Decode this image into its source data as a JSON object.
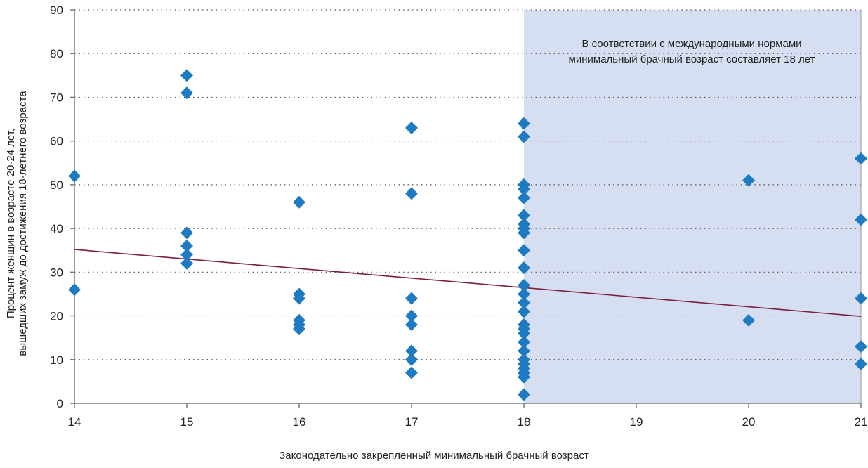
{
  "chart_data": {
    "type": "scatter",
    "xlabel": "Законодательно закрепленный минимальный брачный возраст",
    "ylabel_lines": [
      "Процент женщин в возрасте 20-24 лет,",
      "вышедших замуж до достижения 18-летнего возраста"
    ],
    "annotation_lines": [
      "В соответствии с международными нормами",
      "минимальный брачный возраст составляет 18 лет"
    ],
    "x_ticks": [
      14,
      15,
      16,
      17,
      18,
      19,
      20,
      21
    ],
    "y_ticks": [
      0,
      10,
      20,
      30,
      40,
      50,
      60,
      70,
      80,
      90
    ],
    "xlim": [
      14,
      21
    ],
    "ylim": [
      0,
      90
    ],
    "grid": "horizontal dotted",
    "shaded_region": {
      "x_from": 18,
      "x_to": 21,
      "color": "#d6dff1"
    },
    "marker": {
      "shape": "diamond",
      "color": "#1f7bc1"
    },
    "trendline": {
      "x": [
        14,
        21
      ],
      "y": [
        35.2,
        19.9
      ],
      "color": "#7a1f3d"
    },
    "points": [
      {
        "x": 14,
        "y": 52
      },
      {
        "x": 14,
        "y": 26
      },
      {
        "x": 15,
        "y": 75
      },
      {
        "x": 15,
        "y": 71
      },
      {
        "x": 15,
        "y": 39
      },
      {
        "x": 15,
        "y": 36
      },
      {
        "x": 15,
        "y": 34
      },
      {
        "x": 15,
        "y": 32
      },
      {
        "x": 16,
        "y": 46
      },
      {
        "x": 16,
        "y": 25
      },
      {
        "x": 16,
        "y": 24
      },
      {
        "x": 16,
        "y": 19
      },
      {
        "x": 16,
        "y": 18
      },
      {
        "x": 16,
        "y": 17
      },
      {
        "x": 17,
        "y": 63
      },
      {
        "x": 17,
        "y": 48
      },
      {
        "x": 17,
        "y": 24
      },
      {
        "x": 17,
        "y": 20
      },
      {
        "x": 17,
        "y": 18
      },
      {
        "x": 17,
        "y": 12
      },
      {
        "x": 17,
        "y": 10
      },
      {
        "x": 17,
        "y": 7
      },
      {
        "x": 18,
        "y": 64
      },
      {
        "x": 18,
        "y": 61
      },
      {
        "x": 18,
        "y": 50
      },
      {
        "x": 18,
        "y": 49
      },
      {
        "x": 18,
        "y": 47
      },
      {
        "x": 18,
        "y": 43
      },
      {
        "x": 18,
        "y": 41
      },
      {
        "x": 18,
        "y": 40
      },
      {
        "x": 18,
        "y": 39
      },
      {
        "x": 18,
        "y": 35
      },
      {
        "x": 18,
        "y": 31
      },
      {
        "x": 18,
        "y": 27
      },
      {
        "x": 18,
        "y": 25
      },
      {
        "x": 18,
        "y": 23
      },
      {
        "x": 18,
        "y": 21
      },
      {
        "x": 18,
        "y": 18
      },
      {
        "x": 18,
        "y": 17
      },
      {
        "x": 18,
        "y": 16
      },
      {
        "x": 18,
        "y": 14
      },
      {
        "x": 18,
        "y": 12
      },
      {
        "x": 18,
        "y": 10
      },
      {
        "x": 18,
        "y": 9
      },
      {
        "x": 18,
        "y": 8
      },
      {
        "x": 18,
        "y": 7
      },
      {
        "x": 18,
        "y": 6
      },
      {
        "x": 18,
        "y": 2
      },
      {
        "x": 20,
        "y": 51
      },
      {
        "x": 20,
        "y": 19
      },
      {
        "x": 21,
        "y": 56
      },
      {
        "x": 21,
        "y": 42
      },
      {
        "x": 21,
        "y": 24
      },
      {
        "x": 21,
        "y": 13
      },
      {
        "x": 21,
        "y": 9
      }
    ]
  }
}
